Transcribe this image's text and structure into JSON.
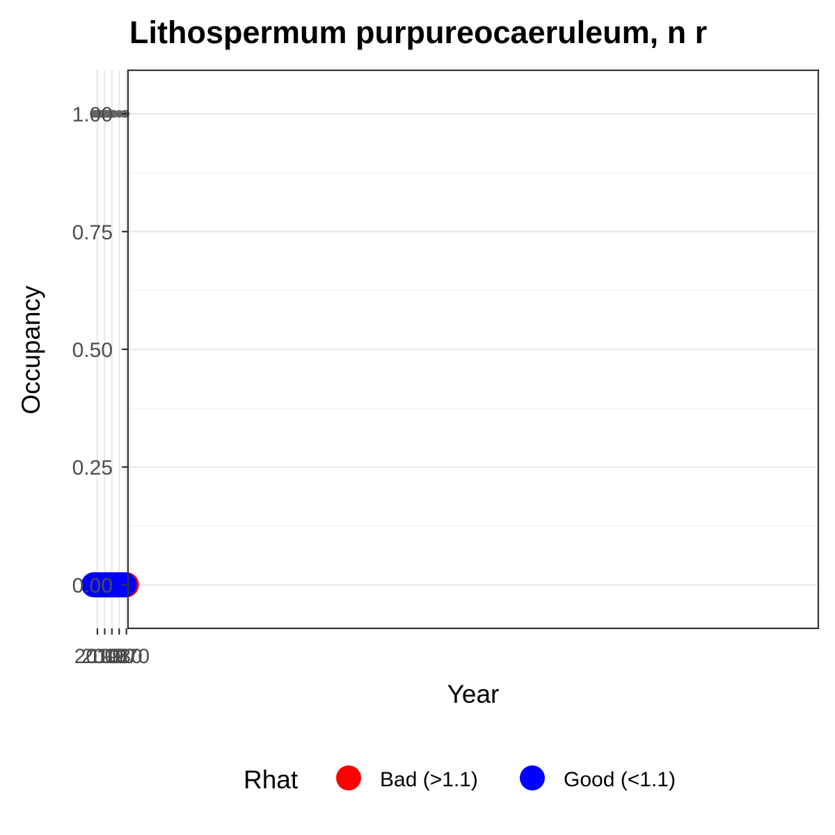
{
  "chart_data": {
    "type": "scatter",
    "title": "Lithospermum purpureocaeruleum, n r",
    "xlabel": "Year",
    "ylabel": "Occupancy",
    "xlim": [
      1967.8,
      1017.2
    ],
    "ylim": [
      -0.0925,
      1.0925
    ],
    "x_ticks": [
      1970,
      1980,
      1990,
      2000,
      2010
    ],
    "x_tick_labels": [
      "1970",
      "1980",
      "1990",
      "2000",
      "2010"
    ],
    "y_ticks": [
      0,
      0.25,
      0.5,
      0.75,
      1
    ],
    "y_tick_labels": [
      "0.00",
      "0.25",
      "0.50",
      "0.75",
      "1.00"
    ],
    "grid": true,
    "legend": {
      "title": "Rhat",
      "position": "bottom",
      "entries": [
        {
          "label": "Bad (>1.1)",
          "color": "#FF0000"
        },
        {
          "label": "Good (<1.1)",
          "color": "#0000FF"
        }
      ]
    },
    "series": [
      {
        "name": "Bad (>1.1)",
        "color": "#FF0000",
        "x": [
          1970,
          1971,
          1972
        ],
        "y": [
          0,
          0,
          0
        ]
      },
      {
        "name": "Good (<1.1)",
        "color": "#0000FF",
        "x": [
          1973,
          1974,
          1975,
          1976,
          1977,
          1978,
          1979,
          1980,
          1981,
          1982,
          1983,
          1984,
          1985,
          1986,
          1987,
          1988,
          1989,
          1990,
          1991,
          1992,
          1993,
          1994,
          1995,
          1996,
          1997,
          1998,
          1999,
          2000,
          2001,
          2002,
          2003,
          2004,
          2005,
          2006,
          2007,
          2008,
          2009,
          2010,
          2011,
          2012,
          2013,
          2014,
          2015
        ],
        "y": [
          0,
          0,
          0,
          0,
          0,
          0,
          0,
          0,
          0,
          0,
          0,
          0,
          0,
          0,
          0,
          0,
          0,
          0,
          0,
          0,
          0,
          0,
          0,
          0,
          0,
          0,
          0,
          0,
          0,
          0,
          0,
          0,
          0,
          0,
          0,
          0,
          0,
          0,
          0,
          0,
          0,
          0,
          0
        ]
      },
      {
        "color": "#666666",
        "x": [
          1971,
          1973,
          1980,
          1987,
          1988,
          1989,
          1992,
          1993,
          1994,
          1995,
          1997,
          1998,
          1999,
          2000,
          2001,
          2002,
          2003,
          2004,
          2005,
          2006,
          2007,
          2008,
          2009,
          2010,
          2011,
          2012,
          2013,
          2014,
          2015
        ],
        "y": [
          1,
          1,
          1,
          1,
          1,
          1,
          1,
          1,
          1,
          1,
          1,
          1,
          1,
          1,
          1,
          1,
          1,
          1,
          1,
          1,
          1,
          1,
          1,
          1,
          1,
          1,
          1,
          1,
          1
        ]
      }
    ]
  }
}
